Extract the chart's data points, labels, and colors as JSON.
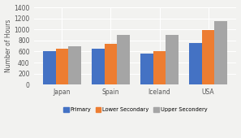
{
  "categories": [
    "Japan",
    "Spain",
    "Iceland",
    "USA"
  ],
  "series": {
    "Primary": [
      600,
      650,
      570,
      750
    ],
    "Lower Secondary": [
      650,
      740,
      600,
      990
    ],
    "Upper Secondary": [
      700,
      900,
      900,
      1150
    ]
  },
  "colors": {
    "Primary": "#4472C4",
    "Lower Secondary": "#ED7D31",
    "Upper Secondary": "#A5A5A5"
  },
  "ylabel": "Number of Hours",
  "ylim": [
    0,
    1400
  ],
  "yticks": [
    0,
    200,
    400,
    600,
    800,
    1000,
    1200,
    1400
  ],
  "legend_labels": [
    "Primary",
    "Lower Secondary",
    "Upper Secondery"
  ],
  "plot_bg_color": "#f2f2f0",
  "fig_bg_color": "#f2f2f0",
  "grid_color": "#ffffff"
}
